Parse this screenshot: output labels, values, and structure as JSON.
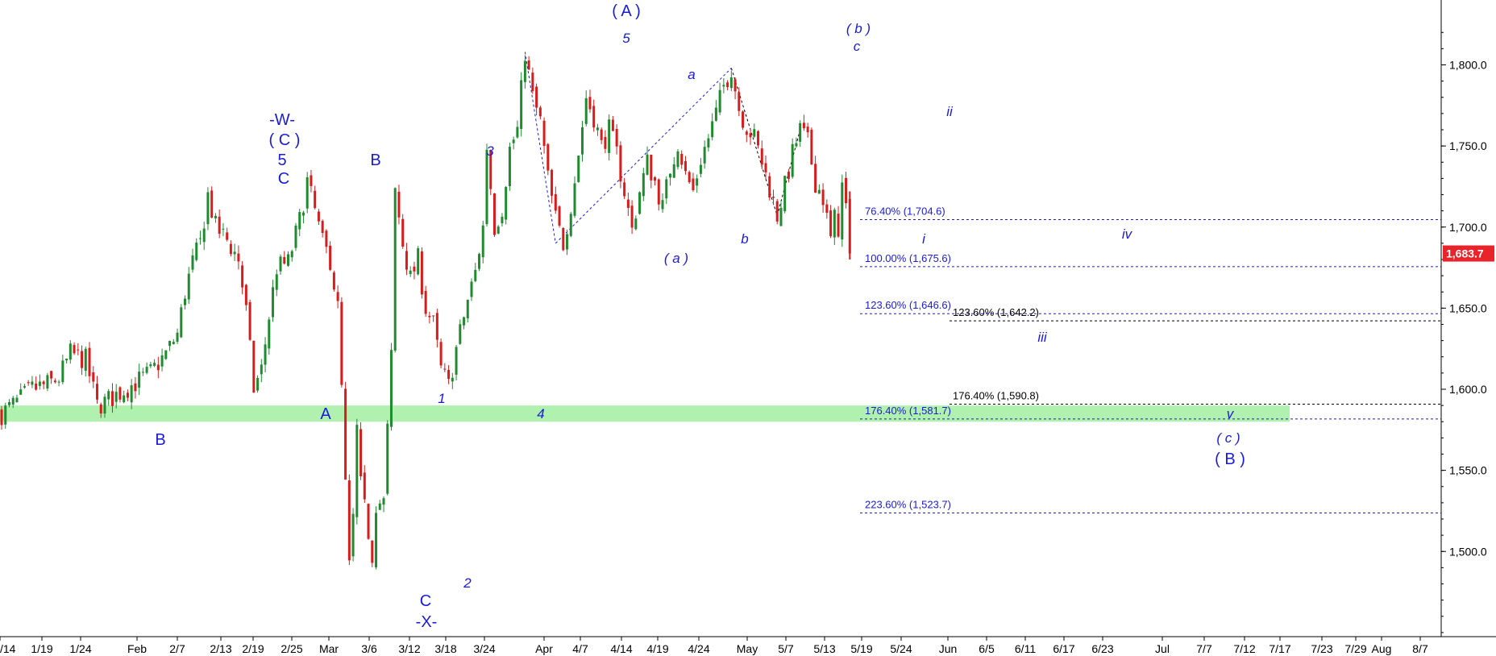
{
  "chart_data": {
    "type": "candlestick",
    "y_axis": {
      "position": "right",
      "ticks": [
        "1,500.0",
        "1,550.0",
        "1,600.0",
        "1,650.0",
        "1,700.0",
        "1,750.0",
        "1,800.0"
      ],
      "range": [
        1435,
        1830
      ]
    },
    "x_axis": {
      "ticks": [
        "/14",
        "1/19",
        "1/24",
        "Feb",
        "2/7",
        "2/13",
        "2/19",
        "2/25",
        "Mar",
        "3/6",
        "3/12",
        "3/18",
        "3/24",
        "Apr",
        "4/7",
        "4/14",
        "4/19",
        "4/24",
        "May",
        "5/7",
        "5/13",
        "5/19",
        "5/24",
        "Jun",
        "6/5",
        "6/11",
        "6/17",
        "6/23",
        "Jul",
        "7/7",
        "7/12",
        "7/17",
        "7/23",
        "7/29",
        "Aug",
        "8/7"
      ]
    },
    "last_price": "1,683.7",
    "last_price_value": 1683.7,
    "price_path": [
      [
        0,
        1585
      ],
      [
        4,
        1592
      ],
      [
        8,
        1600
      ],
      [
        12,
        1603
      ],
      [
        15,
        1607
      ],
      [
        18,
        1622
      ],
      [
        22,
        1618
      ],
      [
        25,
        1590
      ],
      [
        27,
        1592
      ],
      [
        31,
        1598
      ],
      [
        35,
        1604
      ],
      [
        39,
        1610
      ],
      [
        43,
        1622
      ],
      [
        46,
        1634
      ],
      [
        48,
        1660
      ],
      [
        50,
        1678
      ],
      [
        52,
        1690
      ],
      [
        54,
        1720
      ],
      [
        56,
        1700
      ],
      [
        59,
        1692
      ],
      [
        62,
        1680
      ],
      [
        64,
        1648
      ],
      [
        66,
        1600
      ],
      [
        68,
        1612
      ],
      [
        70,
        1645
      ],
      [
        72,
        1675
      ],
      [
        75,
        1678
      ],
      [
        78,
        1704
      ],
      [
        80,
        1728
      ],
      [
        82,
        1710
      ],
      [
        84,
        1690
      ],
      [
        86,
        1680
      ],
      [
        88,
        1650
      ],
      [
        89,
        1600
      ],
      [
        90,
        1540
      ],
      [
        91,
        1490
      ],
      [
        92,
        1520
      ],
      [
        93,
        1575
      ],
      [
        94,
        1540
      ],
      [
        96,
        1512
      ],
      [
        97,
        1498
      ],
      [
        98,
        1530
      ],
      [
        100,
        1530
      ],
      [
        102,
        1620
      ],
      [
        103,
        1722
      ],
      [
        105,
        1690
      ],
      [
        107,
        1668
      ],
      [
        109,
        1680
      ],
      [
        111,
        1650
      ],
      [
        113,
        1640
      ],
      [
        115,
        1612
      ],
      [
        117,
        1602
      ],
      [
        119,
        1625
      ],
      [
        122,
        1655
      ],
      [
        124,
        1672
      ],
      [
        126,
        1700
      ],
      [
        127,
        1750
      ],
      [
        129,
        1700
      ],
      [
        131,
        1712
      ],
      [
        133,
        1748
      ],
      [
        135,
        1760
      ],
      [
        137,
        1808
      ],
      [
        139,
        1780
      ],
      [
        141,
        1765
      ],
      [
        143,
        1730
      ],
      [
        145,
        1705
      ],
      [
        147,
        1690
      ],
      [
        149,
        1714
      ],
      [
        151,
        1745
      ],
      [
        153,
        1780
      ],
      [
        155,
        1768
      ],
      [
        157,
        1750
      ],
      [
        159,
        1760
      ],
      [
        161,
        1745
      ],
      [
        163,
        1722
      ],
      [
        165,
        1698
      ],
      [
        167,
        1722
      ],
      [
        169,
        1740
      ],
      [
        171,
        1728
      ],
      [
        173,
        1712
      ],
      [
        175,
        1736
      ],
      [
        177,
        1752
      ],
      [
        179,
        1732
      ],
      [
        181,
        1722
      ],
      [
        183,
        1742
      ],
      [
        185,
        1755
      ],
      [
        187,
        1770
      ],
      [
        189,
        1787
      ],
      [
        191,
        1798
      ],
      [
        193,
        1773
      ],
      [
        195,
        1762
      ],
      [
        197,
        1755
      ],
      [
        199,
        1740
      ],
      [
        201,
        1724
      ],
      [
        203,
        1707
      ],
      [
        205,
        1725
      ],
      [
        207,
        1745
      ],
      [
        209,
        1760
      ],
      [
        211,
        1752
      ],
      [
        213,
        1728
      ],
      [
        215,
        1718
      ],
      [
        217,
        1692
      ],
      [
        218,
        1705
      ],
      [
        219,
        1700
      ],
      [
        220,
        1725
      ],
      [
        221,
        1712
      ],
      [
        222,
        1683.7
      ]
    ],
    "fib_levels": [
      {
        "label": "76.40% (1,704.6)",
        "value": 1704.6,
        "color": "#1a1adb"
      },
      {
        "label": "100.00% (1,675.6)",
        "value": 1675.6,
        "color": "#1a1adb"
      },
      {
        "label": "123.60% (1,646.6)",
        "value": 1646.6,
        "color": "#1a1adb"
      },
      {
        "label": "123.60% (1,642.2)",
        "value": 1642.2,
        "color": "#000000"
      },
      {
        "label": "176.40% (1,590.8)",
        "value": 1590.8,
        "color": "#000000"
      },
      {
        "label": "176.40% (1,581.7)",
        "value": 1581.7,
        "color": "#1a1adb"
      },
      {
        "label": "223.60% (1,523.7)",
        "value": 1523.7,
        "color": "#1a1adb"
      }
    ],
    "support_zone": {
      "low": 1580,
      "high": 1590
    },
    "wave_labels": [
      {
        "text": "-W-",
        "big": true
      },
      {
        "text": "( C )",
        "big": true
      },
      {
        "text": "5",
        "big": true
      },
      {
        "text": "C",
        "big": true
      },
      {
        "text": "B",
        "big": true
      },
      {
        "text": "B",
        "big": true
      },
      {
        "text": "A",
        "big": true
      },
      {
        "text": "1",
        "big": false
      },
      {
        "text": "C",
        "big": true
      },
      {
        "text": "-X-",
        "big": true
      },
      {
        "text": "2",
        "big": false
      },
      {
        "text": "3",
        "big": false
      },
      {
        "text": "4",
        "big": false
      },
      {
        "text": "( A )",
        "big": true
      },
      {
        "text": "5",
        "big": false
      },
      {
        "text": "( a )",
        "big": false
      },
      {
        "text": "a",
        "big": false
      },
      {
        "text": "b",
        "big": false
      },
      {
        "text": "( b )",
        "big": false
      },
      {
        "text": "c",
        "big": false
      },
      {
        "text": "ii",
        "big": false
      },
      {
        "text": "i",
        "big": false
      },
      {
        "text": "iv",
        "big": false
      },
      {
        "text": "iii",
        "big": false
      },
      {
        "text": "v",
        "big": false
      },
      {
        "text": "( c )",
        "big": false
      },
      {
        "text": "( B )",
        "big": true
      }
    ],
    "trend_lines": [
      {
        "from": [
          145,
          1690
        ],
        "to": [
          191,
          1798
        ],
        "color": "#1a1adb"
      },
      {
        "from": [
          137,
          1808
        ],
        "to": [
          145,
          1690
        ],
        "color": "#1a1adb"
      },
      {
        "from": [
          191,
          1798
        ],
        "to": [
          203,
          1707
        ],
        "color": "#000000"
      },
      {
        "from": [
          203,
          1707
        ],
        "to": [
          209,
          1760
        ],
        "color": "#000000"
      }
    ]
  }
}
